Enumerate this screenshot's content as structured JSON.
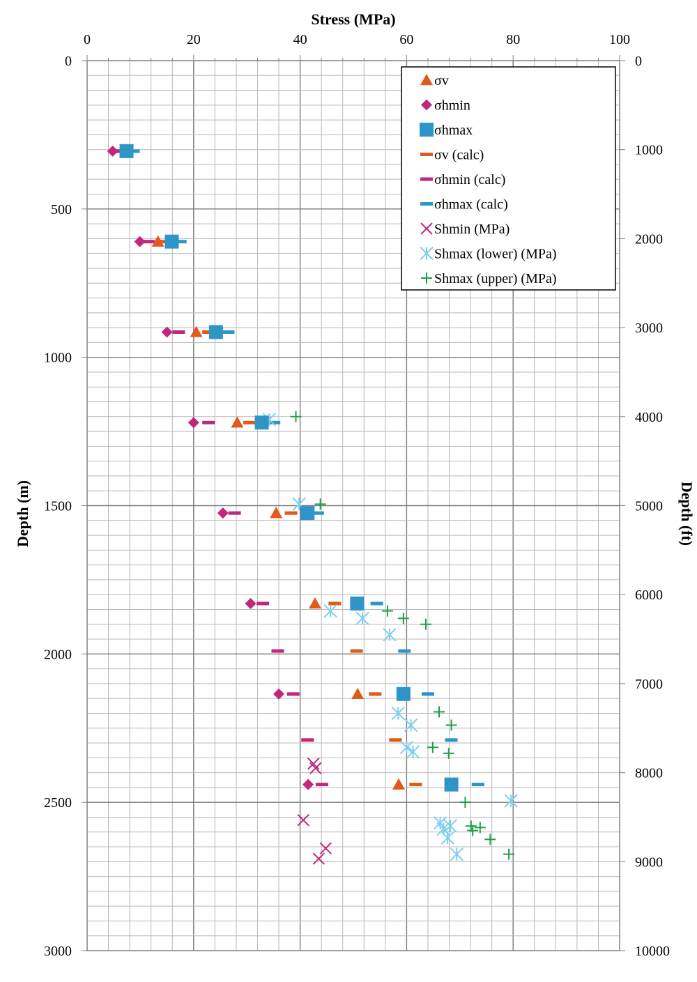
{
  "chart_data": {
    "type": "scatter",
    "title": "",
    "xlabel": "Stress (MPa)",
    "ylabel": "Depth (m)",
    "y2label": "Depth (ft)",
    "xlim": [
      0,
      100
    ],
    "ylim": [
      0,
      3000
    ],
    "y2lim": [
      0,
      10000
    ],
    "x_ticks": [
      "0",
      "20",
      "40",
      "60",
      "80",
      "100"
    ],
    "y_ticks": [
      "0",
      "500",
      "1000",
      "1500",
      "2000",
      "2500",
      "3000"
    ],
    "y2_ticks": [
      "0",
      "1000",
      "2000",
      "3000",
      "4000",
      "5000",
      "6000",
      "7000",
      "8000",
      "9000",
      "10000"
    ],
    "x_axis_position": "top",
    "y_inverted": true,
    "grid": true,
    "legend_position": "top-right",
    "series": [
      {
        "name": "σv",
        "marker": "triangle",
        "color": "#e05a1c",
        "points": [
          [
            13.3,
            610
          ],
          [
            20.5,
            915
          ],
          [
            28.2,
            1220
          ],
          [
            35.5,
            1525
          ],
          [
            42.8,
            1830
          ],
          [
            50.8,
            2135
          ],
          [
            58.5,
            2440
          ]
        ]
      },
      {
        "name": "σhmin",
        "marker": "diamond",
        "color": "#c0287a",
        "points": [
          [
            4.8,
            305
          ],
          [
            9.9,
            610
          ],
          [
            15.0,
            915
          ],
          [
            20.0,
            1220
          ],
          [
            25.5,
            1525
          ],
          [
            30.7,
            1830
          ],
          [
            36.0,
            2135
          ],
          [
            41.5,
            2440
          ]
        ]
      },
      {
        "name": "σhmax",
        "marker": "square",
        "color": "#2e95c8",
        "points": [
          [
            7.4,
            305
          ],
          [
            15.9,
            610
          ],
          [
            24.2,
            915
          ],
          [
            32.8,
            1220
          ],
          [
            41.4,
            1525
          ],
          [
            50.7,
            1830
          ],
          [
            59.4,
            2135
          ],
          [
            68.4,
            2440
          ]
        ]
      },
      {
        "name": "σv (calc)",
        "marker": "dash",
        "color": "#e05a1c",
        "points": [
          [
            6.6,
            305
          ],
          [
            14.5,
            610
          ],
          [
            22.8,
            915
          ],
          [
            30.5,
            1220
          ],
          [
            38.3,
            1525
          ],
          [
            46.5,
            1830
          ],
          [
            50.6,
            1990
          ],
          [
            54.1,
            2135
          ],
          [
            57.9,
            2290
          ],
          [
            61.7,
            2440
          ]
        ]
      },
      {
        "name": "σhmin (calc)",
        "marker": "dash",
        "color": "#c0287a",
        "points": [
          [
            5.6,
            305
          ],
          [
            11.5,
            610
          ],
          [
            17.2,
            915
          ],
          [
            22.8,
            1220
          ],
          [
            27.7,
            1525
          ],
          [
            33.0,
            1830
          ],
          [
            35.8,
            1990
          ],
          [
            38.7,
            2135
          ],
          [
            41.4,
            2290
          ],
          [
            44.1,
            2440
          ]
        ]
      },
      {
        "name": "σhmax (calc)",
        "marker": "dash",
        "color": "#2e95c8",
        "points": [
          [
            8.7,
            305
          ],
          [
            17.5,
            610
          ],
          [
            26.5,
            915
          ],
          [
            35.1,
            1220
          ],
          [
            43.3,
            1525
          ],
          [
            54.4,
            1830
          ],
          [
            59.6,
            1990
          ],
          [
            64.0,
            2135
          ],
          [
            68.4,
            2290
          ],
          [
            73.4,
            2440
          ]
        ]
      },
      {
        "name": "Shmin (MPa)",
        "marker": "x",
        "color": "#c0287a",
        "points": [
          [
            42.5,
            2370
          ],
          [
            42.9,
            2385
          ],
          [
            40.6,
            2560
          ],
          [
            44.8,
            2655
          ],
          [
            43.5,
            2690
          ]
        ]
      },
      {
        "name": "Shmax (lower) (MPa)",
        "marker": "asterisk",
        "color": "#7ecfef",
        "points": [
          [
            34.2,
            1210
          ],
          [
            39.8,
            1495
          ],
          [
            45.7,
            1855
          ],
          [
            51.7,
            1880
          ],
          [
            56.8,
            1935
          ],
          [
            58.4,
            2200
          ],
          [
            60.8,
            2240
          ],
          [
            60.0,
            2315
          ],
          [
            61.2,
            2330
          ],
          [
            66.3,
            2570
          ],
          [
            66.9,
            2590
          ],
          [
            67.7,
            2620
          ],
          [
            68.2,
            2580
          ],
          [
            69.4,
            2675
          ],
          [
            79.6,
            2495
          ]
        ]
      },
      {
        "name": "Shmax (upper) (MPa)",
        "marker": "plus",
        "color": "#1d9e4a",
        "points": [
          [
            39.2,
            1200
          ],
          [
            43.8,
            1495
          ],
          [
            56.4,
            1855
          ],
          [
            59.4,
            1880
          ],
          [
            63.6,
            1900
          ],
          [
            66.1,
            2195
          ],
          [
            68.4,
            2240
          ],
          [
            64.9,
            2315
          ],
          [
            67.9,
            2335
          ],
          [
            71.0,
            2500
          ],
          [
            72.1,
            2580
          ],
          [
            72.4,
            2595
          ],
          [
            73.8,
            2585
          ],
          [
            75.7,
            2625
          ],
          [
            79.2,
            2675
          ]
        ]
      }
    ]
  }
}
